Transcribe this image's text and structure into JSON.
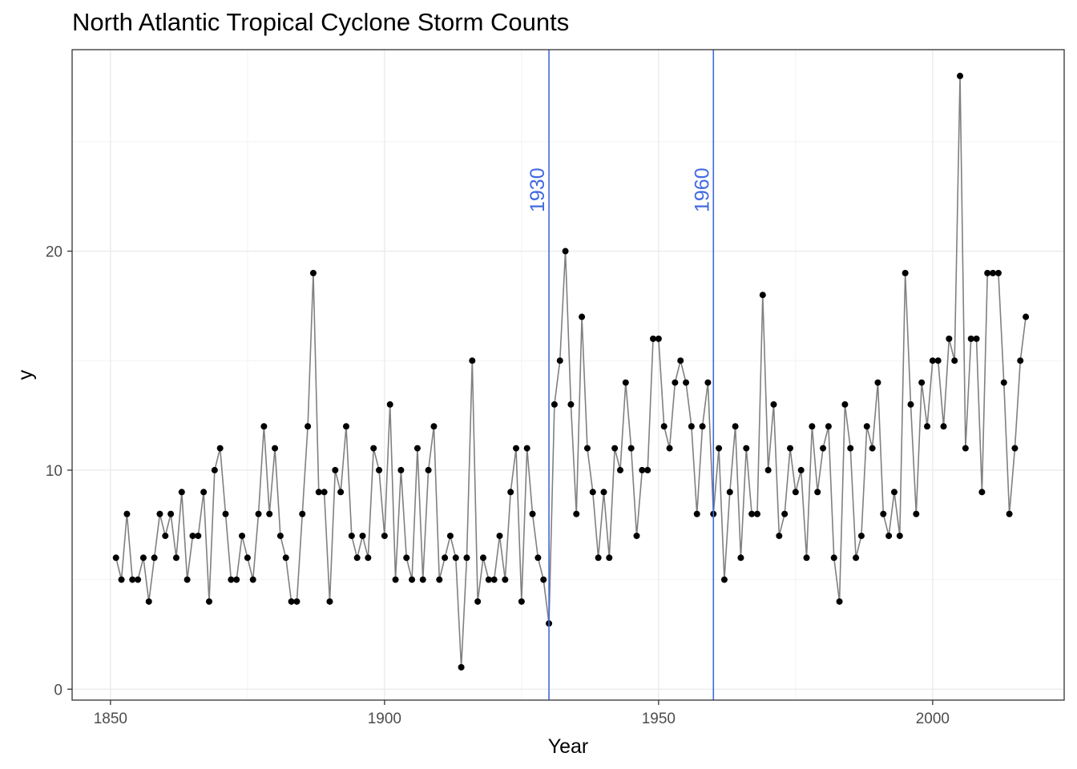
{
  "chart_data": {
    "type": "line",
    "title": "North Atlantic Tropical Cyclone Storm Counts",
    "xlabel": "Year",
    "ylabel": "y",
    "xlim": [
      1843,
      2024
    ],
    "ylim": [
      -0.5,
      29.2
    ],
    "x_ticks": [
      1850,
      1900,
      1950,
      2000
    ],
    "y_ticks": [
      0,
      10,
      20
    ],
    "grid": true,
    "legend": "none",
    "line_color": "#808080",
    "point_color": "#000000",
    "vline_color": "#4169E1",
    "vlines": [
      {
        "x": 1930,
        "label": "1930"
      },
      {
        "x": 1960,
        "label": "1960"
      }
    ],
    "series": [
      {
        "x_start": 1851,
        "values": [
          6,
          5,
          8,
          5,
          5,
          6,
          4,
          6,
          8,
          7,
          8,
          6,
          9,
          5,
          7,
          7,
          9,
          4,
          10,
          11,
          8,
          5,
          5,
          7,
          6,
          5,
          8,
          12,
          8,
          11,
          7,
          6,
          4,
          4,
          8,
          12,
          19,
          9,
          9,
          4,
          10,
          9,
          12,
          7,
          6,
          7,
          6,
          11,
          10,
          7,
          13,
          5,
          10,
          6,
          5,
          11,
          5,
          10,
          12,
          5,
          6,
          7,
          6,
          1,
          6,
          15,
          4,
          6,
          5,
          5,
          7,
          5,
          9,
          11,
          4,
          11,
          8,
          6,
          5,
          3,
          13,
          15,
          20,
          13,
          8,
          17,
          11,
          9,
          6,
          9,
          6,
          11,
          10,
          14,
          11,
          7,
          10,
          10,
          16,
          16,
          12,
          11,
          14,
          15,
          14,
          12,
          8,
          12,
          14,
          8,
          11,
          5,
          9,
          12,
          6,
          11,
          8,
          8,
          18,
          10,
          13,
          7,
          8,
          11,
          9,
          10,
          6,
          12,
          9,
          11,
          12,
          6,
          4,
          13,
          11,
          6,
          7,
          12,
          11,
          14,
          8,
          7,
          9,
          7,
          19,
          13,
          8,
          14,
          12,
          15,
          15,
          12,
          16,
          15,
          28,
          11,
          16,
          16,
          9,
          19,
          19,
          19,
          14,
          8,
          11,
          15,
          17
        ]
      }
    ]
  }
}
